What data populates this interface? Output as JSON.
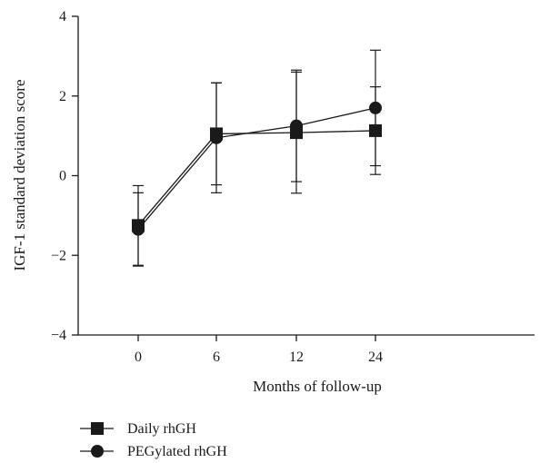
{
  "chart_data": {
    "type": "line",
    "title": "",
    "xlabel": "Months of follow-up",
    "ylabel": "IGF-1 standard deviation score",
    "categories": [
      "0",
      "6",
      "12",
      "24"
    ],
    "ylim": [
      -4,
      4
    ],
    "yticks": [
      "4",
      "2",
      "0",
      "−2",
      "−4"
    ],
    "ytick_values": [
      4,
      2,
      0,
      -2,
      -4
    ],
    "grid": false,
    "legend_position": "bottom-left",
    "series": [
      {
        "name": "Daily rhGH",
        "marker": "square",
        "values": [
          -1.25,
          1.05,
          1.08,
          1.13
        ],
        "error": [
          1.0,
          1.28,
          1.52,
          1.1
        ]
      },
      {
        "name": "PEGylated rhGH",
        "marker": "circle",
        "values": [
          -1.35,
          0.95,
          1.25,
          1.7
        ],
        "error": [
          0.92,
          1.38,
          1.4,
          1.45
        ]
      }
    ],
    "colors": {
      "line": "#1a1a1a",
      "marker": "#1a1a1a"
    }
  }
}
